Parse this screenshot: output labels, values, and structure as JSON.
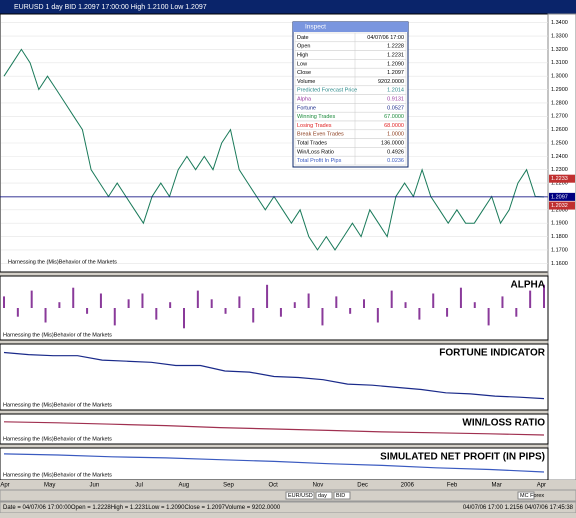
{
  "title_bar": "EURUSD 1 day BID 1.2097 17:00:00 High 1.2100 Low 1.2097",
  "price_panel": {
    "watermark": "Harnessing the (Mis)Behavior of the Markets",
    "ylim": [
      1.155,
      1.345
    ],
    "yticks": [
      {
        "value": 1.16,
        "label": "1.1600"
      },
      {
        "value": 1.17,
        "label": "1.1700"
      },
      {
        "value": 1.18,
        "label": "1.1800"
      },
      {
        "value": 1.19,
        "label": "1.1900"
      },
      {
        "value": 1.2,
        "label": "1.2000"
      },
      {
        "value": 1.21,
        "label": "1.2100"
      },
      {
        "value": 1.22,
        "label": "1.2200"
      },
      {
        "value": 1.23,
        "label": "1.2300"
      },
      {
        "value": 1.24,
        "label": "1.2400"
      },
      {
        "value": 1.25,
        "label": "1.2500"
      },
      {
        "value": 1.26,
        "label": "1.2600"
      },
      {
        "value": 1.27,
        "label": "1.2700"
      },
      {
        "value": 1.28,
        "label": "1.2800"
      },
      {
        "value": 1.29,
        "label": "1.2900"
      },
      {
        "value": 1.3,
        "label": "1.3000"
      },
      {
        "value": 1.31,
        "label": "1.3100"
      },
      {
        "value": 1.32,
        "label": "1.3200"
      },
      {
        "value": 1.33,
        "label": "1.3300"
      },
      {
        "value": 1.34,
        "label": "1.3400"
      }
    ],
    "closes": [
      1.3,
      1.31,
      1.32,
      1.31,
      1.29,
      1.3,
      1.29,
      1.28,
      1.27,
      1.26,
      1.23,
      1.22,
      1.21,
      1.22,
      1.21,
      1.2,
      1.19,
      1.21,
      1.22,
      1.21,
      1.23,
      1.24,
      1.23,
      1.24,
      1.23,
      1.25,
      1.26,
      1.23,
      1.22,
      1.21,
      1.2,
      1.21,
      1.2,
      1.19,
      1.2,
      1.18,
      1.17,
      1.18,
      1.17,
      1.18,
      1.19,
      1.18,
      1.2,
      1.19,
      1.18,
      1.21,
      1.22,
      1.21,
      1.23,
      1.21,
      1.2,
      1.19,
      1.2,
      1.19,
      1.19,
      1.2,
      1.21,
      1.19,
      1.2,
      1.22,
      1.23,
      1.21,
      1.2097
    ],
    "price_markers": [
      {
        "value": 1.2233,
        "label": "1.2233"
      },
      {
        "value": 1.2097,
        "label": "1.2097"
      },
      {
        "value": 1.2032,
        "label": "1.2032"
      }
    ]
  },
  "inspect": {
    "title": "Inspect",
    "rows": [
      {
        "label": "Date",
        "value": "04/07/06 17:00",
        "color": "#000000"
      },
      {
        "label": "Open",
        "value": "1.2228",
        "color": "#000000"
      },
      {
        "label": "High",
        "value": "1.2231",
        "color": "#000000"
      },
      {
        "label": "Low",
        "value": "1.2090",
        "color": "#000000"
      },
      {
        "label": "Close",
        "value": "1.2097",
        "color": "#000000"
      },
      {
        "label": "Volume",
        "value": "9202.0000",
        "color": "#000000"
      },
      {
        "label": "Predicted Forecast Price",
        "value": "1.2014",
        "color": "#2a8a8a"
      },
      {
        "label": "Alpha",
        "value": "0.9131",
        "color": "#9a3aa0"
      },
      {
        "label": "Fortune",
        "value": "0.0527",
        "color": "#1a2a8a"
      },
      {
        "label": "Winning Trades",
        "value": "67.0000",
        "color": "#1a8a3a"
      },
      {
        "label": "Losing Trades",
        "value": "68.0000",
        "color": "#e02020"
      },
      {
        "label": "Break Even Trades",
        "value": "1.0000",
        "color": "#8a3a1a"
      },
      {
        "label": "Total Trades",
        "value": "136.0000",
        "color": "#000000"
      },
      {
        "label": "Win/Loss Ratio",
        "value": "0.4926",
        "color": "#000000"
      },
      {
        "label": "Total Profit In Pips",
        "value": "0.0236",
        "color": "#3a5ac0"
      }
    ]
  },
  "panels": [
    {
      "title": "ALPHA",
      "watermark": "Harnessing the (Mis)Behavior of the Markets",
      "type": "bars",
      "color": "#8a3a9a",
      "ylim": [
        -1,
        1
      ],
      "values": [
        0.4,
        -0.3,
        0.6,
        -0.5,
        0.2,
        0.7,
        -0.2,
        0.5,
        -0.6,
        0.3,
        0.5,
        -0.4,
        0.2,
        -0.7,
        0.6,
        0.3,
        -0.2,
        0.4,
        -0.5,
        0.8,
        -0.3,
        0.2,
        0.5,
        -0.6,
        0.4,
        -0.2,
        0.3,
        -0.5,
        0.6,
        0.2,
        -0.4,
        0.5,
        -0.3,
        0.7,
        0.2,
        -0.6,
        0.4,
        -0.3,
        0.6,
        0.8
      ]
    },
    {
      "title": "FORTUNE INDICATOR",
      "watermark": "Harnessing the (Mis)Behavior of the Markets",
      "type": "line",
      "color": "#1a2a8a",
      "ylim": [
        0.045,
        0.1
      ],
      "values": [
        0.095,
        0.093,
        0.092,
        0.092,
        0.088,
        0.087,
        0.086,
        0.083,
        0.083,
        0.078,
        0.077,
        0.073,
        0.072,
        0.07,
        0.066,
        0.065,
        0.063,
        0.061,
        0.058,
        0.057,
        0.055,
        0.054,
        0.0527
      ]
    },
    {
      "title": "WIN/LOSS RATIO",
      "watermark": "Harnessing the (Mis)Behavior of the Markets",
      "type": "line",
      "color": "#a03050",
      "ylim": [
        0.48,
        0.53
      ],
      "values": [
        0.52,
        0.518,
        0.515,
        0.512,
        0.508,
        0.505,
        0.502,
        0.499,
        0.497,
        0.495,
        0.4926
      ]
    },
    {
      "title": "SIMULATED NET PROFIT (IN PIPS)",
      "watermark": "Harnessing the (Mis)Behavior of the Markets",
      "type": "line",
      "color": "#3a5ac0",
      "ylim": [
        0.015,
        0.06
      ],
      "values": [
        0.055,
        0.053,
        0.05,
        0.048,
        0.045,
        0.042,
        0.038,
        0.035,
        0.031,
        0.028,
        0.0236
      ]
    }
  ],
  "x_axis": [
    "Apr",
    "May",
    "Jun",
    "Jul",
    "Aug",
    "Sep",
    "Oct",
    "Nov",
    "Dec",
    "2006",
    "Feb",
    "Mar",
    "Apr"
  ],
  "toolbar": [
    "EUR/USD",
    "day",
    "BID",
    "MC Forex"
  ],
  "status": {
    "left": "Date = 04/07/06 17:00:00Open = 1.2228High = 1.2231Low = 1.2090Close = 1.2097Volume = 9202.0000",
    "right": "04/07/06 17:00  1.2156   04/07/06 17:45:38"
  }
}
